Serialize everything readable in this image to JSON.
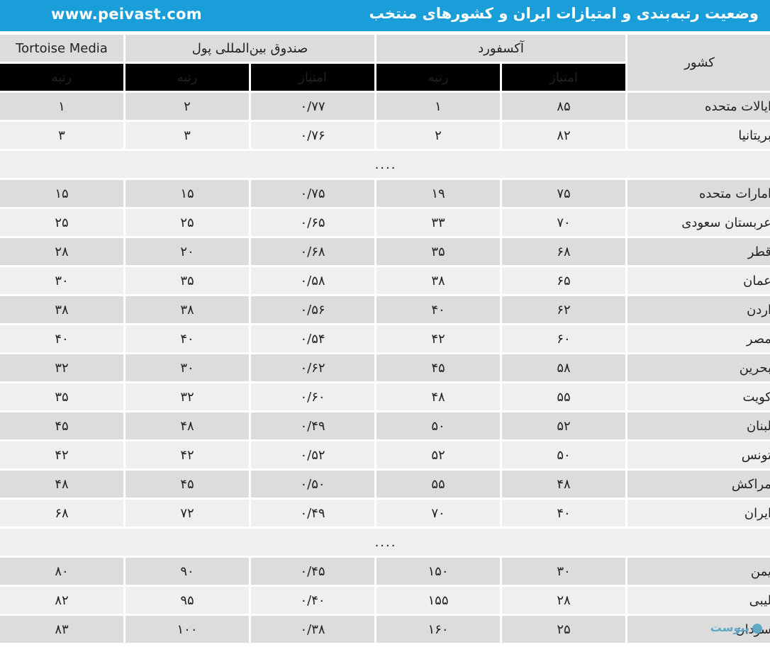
{
  "header": {
    "site": "www.peivast.com",
    "title": "وضعیت رتبه‌بندی و امتیازات ایران و کشورهای منتخب"
  },
  "table": {
    "country_header": "کشور",
    "groups": {
      "oxford": "آکسفورد",
      "imf": "صندوق بین‌المللی پول",
      "tortoise": "Tortoise Media"
    },
    "sub_headers": {
      "score": "امتیاز",
      "rank": "رتبه"
    },
    "gap": "....",
    "rows_top": [
      {
        "country": "ایالات متحده",
        "ox_score": "۸۵",
        "ox_rank": "۱",
        "imf_score": "۰/۷۷",
        "imf_rank": "۲",
        "tm_rank": "۱"
      },
      {
        "country": "بریتانیا",
        "ox_score": "۸۲",
        "ox_rank": "۲",
        "imf_score": "۰/۷۶",
        "imf_rank": "۳",
        "tm_rank": "۳"
      }
    ],
    "rows_mid": [
      {
        "country": "امارات متحده",
        "ox_score": "۷۵",
        "ox_rank": "۱۹",
        "imf_score": "۰/۷۵",
        "imf_rank": "۱۵",
        "tm_rank": "۱۵"
      },
      {
        "country": "عربستان سعودی",
        "ox_score": "۷۰",
        "ox_rank": "۳۳",
        "imf_score": "۰/۶۵",
        "imf_rank": "۲۵",
        "tm_rank": "۲۵"
      },
      {
        "country": "قطر",
        "ox_score": "۶۸",
        "ox_rank": "۳۵",
        "imf_score": "۰/۶۸",
        "imf_rank": "۲۰",
        "tm_rank": "۲۸"
      },
      {
        "country": "عمان",
        "ox_score": "۶۵",
        "ox_rank": "۳۸",
        "imf_score": "۰/۵۸",
        "imf_rank": "۳۵",
        "tm_rank": "۳۰"
      },
      {
        "country": "اردن",
        "ox_score": "۶۲",
        "ox_rank": "۴۰",
        "imf_score": "۰/۵۶",
        "imf_rank": "۳۸",
        "tm_rank": "۳۸"
      },
      {
        "country": "مصر",
        "ox_score": "۶۰",
        "ox_rank": "۴۲",
        "imf_score": "۰/۵۴",
        "imf_rank": "۴۰",
        "tm_rank": "۴۰"
      },
      {
        "country": "بحرین",
        "ox_score": "۵۸",
        "ox_rank": "۴۵",
        "imf_score": "۰/۶۲",
        "imf_rank": "۳۰",
        "tm_rank": "۳۲"
      },
      {
        "country": "کویت",
        "ox_score": "۵۵",
        "ox_rank": "۴۸",
        "imf_score": "۰/۶۰",
        "imf_rank": "۳۲",
        "tm_rank": "۳۵"
      },
      {
        "country": "لبنان",
        "ox_score": "۵۲",
        "ox_rank": "۵۰",
        "imf_score": "۰/۴۹",
        "imf_rank": "۴۸",
        "tm_rank": "۴۵"
      },
      {
        "country": "تونس",
        "ox_score": "۵۰",
        "ox_rank": "۵۲",
        "imf_score": "۰/۵۲",
        "imf_rank": "۴۲",
        "tm_rank": "۴۲"
      },
      {
        "country": "مراکش",
        "ox_score": "۴۸",
        "ox_rank": "۵۵",
        "imf_score": "۰/۵۰",
        "imf_rank": "۴۵",
        "tm_rank": "۴۸"
      },
      {
        "country": "ایران",
        "ox_score": "۴۰",
        "ox_rank": "۷۰",
        "imf_score": "۰/۴۹",
        "imf_rank": "۷۲",
        "tm_rank": "۶۸"
      }
    ],
    "rows_bottom": [
      {
        "country": "یمن",
        "ox_score": "۳۰",
        "ox_rank": "۱۵۰",
        "imf_score": "۰/۴۵",
        "imf_rank": "۹۰",
        "tm_rank": "۸۰"
      },
      {
        "country": "لیبی",
        "ox_score": "۲۸",
        "ox_rank": "۱۵۵",
        "imf_score": "۰/۴۰",
        "imf_rank": "۹۵",
        "tm_rank": "۸۲"
      },
      {
        "country": "سودان",
        "ox_score": "۲۵",
        "ox_rank": "۱۶۰",
        "imf_score": "۰/۳۸",
        "imf_rank": "۱۰۰",
        "tm_rank": "۸۳"
      }
    ]
  },
  "watermark": "پیوست"
}
